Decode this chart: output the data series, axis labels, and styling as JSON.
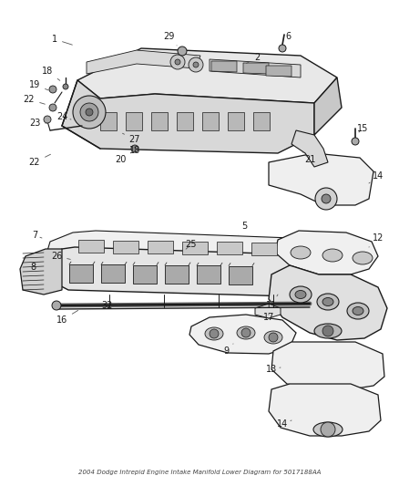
{
  "title": "2004 Dodge Intrepid Engine Intake Manifold Lower Diagram for 5017188AA",
  "background_color": "#ffffff",
  "line_color": "#1a1a1a",
  "figsize": [
    4.38,
    5.33
  ],
  "dpi": 100
}
